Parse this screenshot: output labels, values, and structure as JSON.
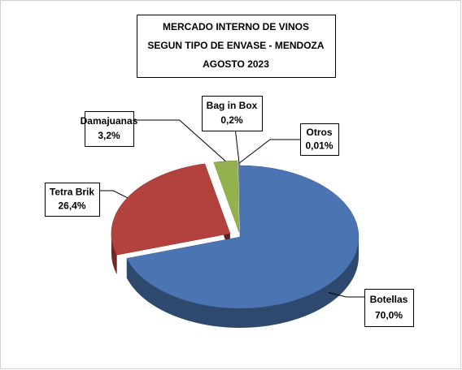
{
  "chart_data": {
    "type": "pie3d",
    "title": [
      "MERCADO INTERNO DE VINOS",
      "SEGUN TIPO DE ENVASE - MENDOZA",
      "AGOSTO 2023"
    ],
    "categories": [
      "Botellas",
      "Tetra Brik",
      "Damajuanas",
      "Bag in Box",
      "Otros"
    ],
    "values": [
      70.0,
      26.4,
      3.2,
      0.2,
      0.01
    ],
    "value_labels": [
      "70,0%",
      "26,4%",
      "3,2%",
      "0,2%",
      "0,01%"
    ],
    "colors": [
      "#4a74b2",
      "#b3413e",
      "#93b14d",
      "#8a6fae",
      "#52a8c5"
    ]
  }
}
